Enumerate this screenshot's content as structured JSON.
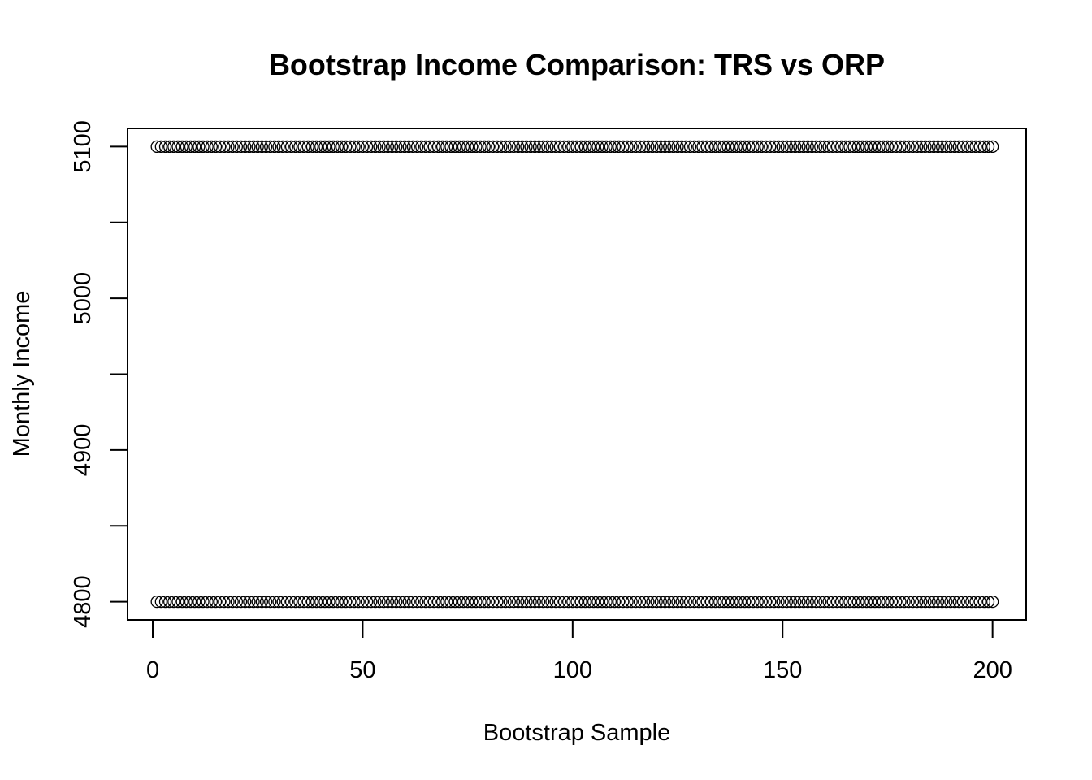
{
  "chart_data": {
    "type": "scatter",
    "title": "Bootstrap Income Comparison: TRS vs ORP",
    "xlabel": "Bootstrap Sample",
    "ylabel": "Monthly Income",
    "xlim": [
      -6,
      208
    ],
    "ylim": [
      4788,
      5112
    ],
    "x_ticks": [
      0,
      50,
      100,
      150,
      200
    ],
    "y_ticks": [
      4800,
      4850,
      4900,
      4950,
      5000,
      5050,
      5100
    ],
    "y_tick_labels": [
      "4800",
      "",
      "4900",
      "",
      "5000",
      "",
      "5100"
    ],
    "grid": false,
    "legend": "none",
    "marker": "open-circle",
    "color": "#000000",
    "series": [
      {
        "x_start": 1,
        "x_end": 200,
        "y": 5100
      },
      {
        "x_start": 1,
        "x_end": 200,
        "y": 4800
      }
    ]
  }
}
